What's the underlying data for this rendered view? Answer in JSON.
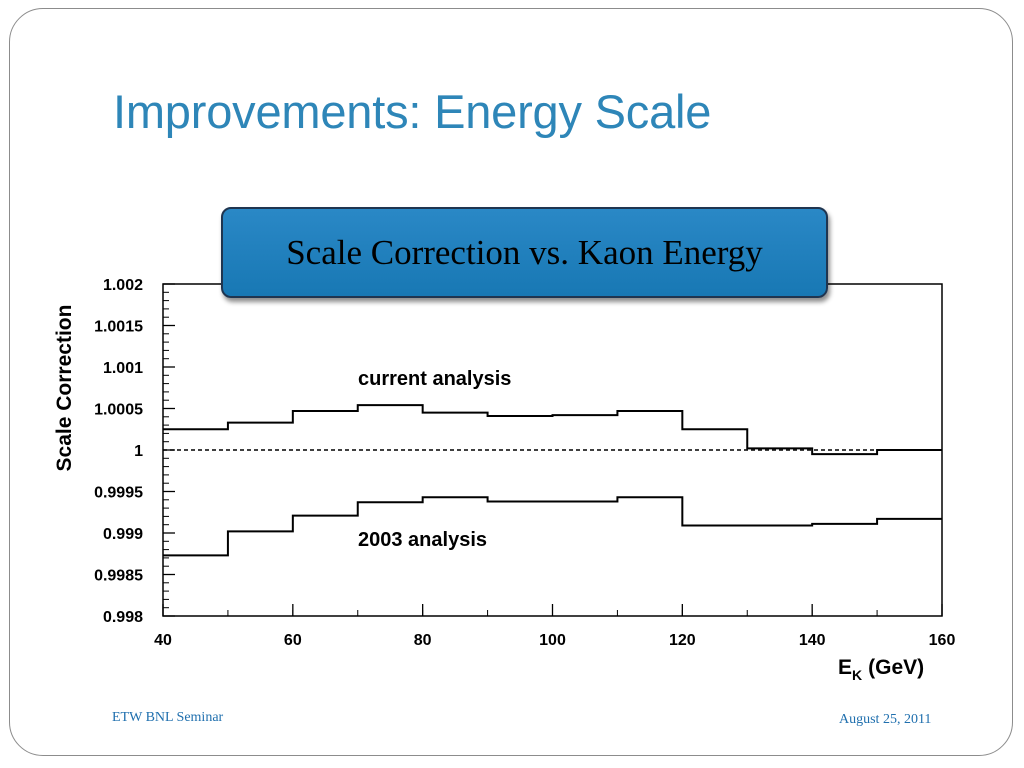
{
  "slide": {
    "title": "Improvements: Energy Scale",
    "callout": "Scale Correction vs. Kaon Energy",
    "footer_left": "ETW BNL Seminar",
    "footer_right": "August 25, 2011",
    "title_color": "#2e86b8",
    "callout_color": "#1a7cbb"
  },
  "chart_data": {
    "type": "line",
    "step": true,
    "ylabel": "Scale Correction",
    "xlabel_main": "E",
    "xlabel_sub": "K",
    "xlabel_unit": "(GeV)",
    "xlim": [
      40,
      160
    ],
    "ylim": [
      0.998,
      1.002
    ],
    "x_ticks": [
      "40",
      "60",
      "80",
      "100",
      "120",
      "140",
      "160"
    ],
    "y_ticks": [
      "1.002",
      "1.0015",
      "1.001",
      "1.0005",
      "1",
      "0.9995",
      "0.999",
      "0.9985",
      "0.998"
    ],
    "reference_line": 1.0,
    "bin_edges": [
      40,
      50,
      60,
      70,
      80,
      90,
      100,
      110,
      120,
      130,
      140,
      150,
      160
    ],
    "series": [
      {
        "name": "current analysis",
        "values": [
          1.00025,
          1.00033,
          1.00047,
          1.00054,
          1.00045,
          1.00041,
          1.00042,
          1.00047,
          1.00025,
          1.00002,
          0.99995,
          1.0
        ]
      },
      {
        "name": "2003 analysis",
        "values": [
          0.99873,
          0.99902,
          0.99921,
          0.99937,
          0.99943,
          0.99938,
          0.99938,
          0.99943,
          0.99909,
          0.99909,
          0.99911,
          0.99917
        ]
      }
    ]
  }
}
